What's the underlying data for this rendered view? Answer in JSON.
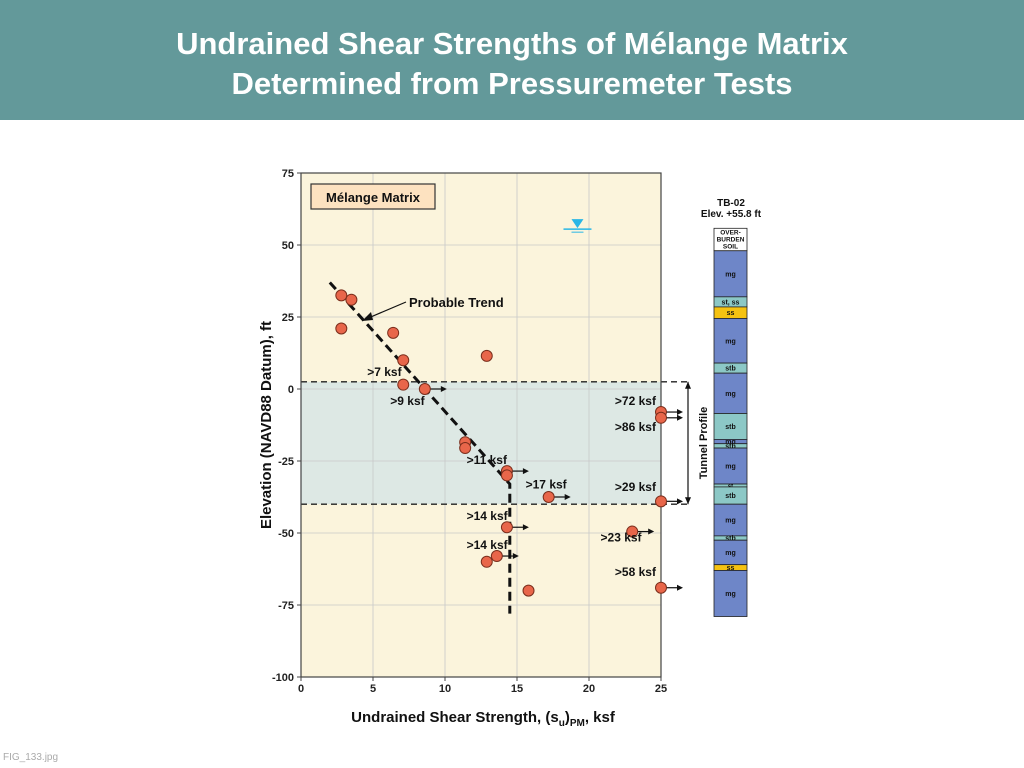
{
  "header": {
    "title_line1": "Undrained Shear Strengths of Mélange Matrix",
    "title_line2": "Determined from Pressuremeter Tests"
  },
  "footer": {
    "figure_id": "FIG_133.jpg"
  },
  "chart_data": {
    "type": "scatter",
    "legend_box": "Mélange Matrix",
    "xlabel_main": "Undrained Shear Strength, (s",
    "xlabel_sub1": "u",
    "xlabel_mid": ")",
    "xlabel_sub2": "PM",
    "xlabel_end": ", ksf",
    "ylabel": "Elevation (NAVD88 Datum), ft",
    "xlim": [
      0,
      25
    ],
    "ylim": [
      -100,
      75
    ],
    "x_ticks": [
      0,
      5,
      10,
      15,
      20,
      25
    ],
    "y_ticks": [
      75,
      50,
      25,
      0,
      -25,
      -50,
      -75,
      -100
    ],
    "grid": true,
    "colors": {
      "plot_bg": "#fbf4dc",
      "band": "#dde8e4",
      "point": "#e8664a",
      "legend_box": "#fde2c0",
      "water": "#29b6e6",
      "mg": "#6e86c8",
      "stb": "#8cc8c6",
      "ss": "#f5c211"
    },
    "points": [
      {
        "x": 2.8,
        "y": 32.5
      },
      {
        "x": 3.5,
        "y": 31
      },
      {
        "x": 2.8,
        "y": 21
      },
      {
        "x": 6.4,
        "y": 19.5
      },
      {
        "x": 7.1,
        "y": 10
      },
      {
        "x": 12.9,
        "y": 11.5
      },
      {
        "x": 7.1,
        "y": 1.5
      },
      {
        "x": 8.6,
        "y": 0
      },
      {
        "x": 11.4,
        "y": -18.5
      },
      {
        "x": 11.4,
        "y": -20.5
      },
      {
        "x": 14.3,
        "y": -28.5
      },
      {
        "x": 14.3,
        "y": -30
      },
      {
        "x": 17.2,
        "y": -37.5
      },
      {
        "x": 25,
        "y": -8
      },
      {
        "x": 25,
        "y": -10
      },
      {
        "x": 25,
        "y": -39
      },
      {
        "x": 14.3,
        "y": -48
      },
      {
        "x": 23,
        "y": -49.5
      },
      {
        "x": 13.6,
        "y": -58
      },
      {
        "x": 12.9,
        "y": -60
      },
      {
        "x": 15.8,
        "y": -70
      },
      {
        "x": 25,
        "y": -69
      }
    ],
    "arrow_points": [
      {
        "x": 8.6,
        "y": 0
      },
      {
        "x": 14.3,
        "y": -28.5
      },
      {
        "x": 17.2,
        "y": -37.5
      },
      {
        "x": 14.3,
        "y": -48
      },
      {
        "x": 13.6,
        "y": -58
      },
      {
        "x": 25,
        "y": -8
      },
      {
        "x": 25,
        "y": -10
      },
      {
        "x": 25,
        "y": -39
      },
      {
        "x": 23,
        "y": -49.5
      },
      {
        "x": 25,
        "y": -69
      }
    ],
    "trend_line": [
      {
        "x": 2,
        "y": 37
      },
      {
        "x": 14.5,
        "y": -33
      },
      {
        "x": 14.5,
        "y": -78
      }
    ],
    "trend_label": "Probable Trend",
    "tunnel_band": [
      2.5,
      -40
    ],
    "water_level": {
      "x": 19.2,
      "y": 55.5
    },
    "annotations": [
      {
        "text": ">7 ksf",
        "x": 4.6,
        "y": 4.5
      },
      {
        "text": ">9 ksf",
        "x": 6.2,
        "y": -5.5
      },
      {
        "text": ">11 ksf",
        "x": 11.5,
        "y": -26
      },
      {
        "text": ">17 ksf",
        "x": 15.6,
        "y": -34.5
      },
      {
        "text": ">14 ksf",
        "x": 11.5,
        "y": -45.5
      },
      {
        "text": ">14 ksf",
        "x": 11.5,
        "y": -55.5
      },
      {
        "text": ">72 ksf",
        "x": 21.8,
        "y": -5.5
      },
      {
        "text": ">86 ksf",
        "x": 21.8,
        "y": -14.5
      },
      {
        "text": ">29 ksf",
        "x": 21.8,
        "y": -35.5
      },
      {
        "text": ">23 ksf",
        "x": 20.8,
        "y": -53
      },
      {
        "text": ">58 ksf",
        "x": 21.8,
        "y": -65
      }
    ],
    "tunnel_profile_label": "Tunnel Profile",
    "boring": {
      "name": "TB-02",
      "elevation": "Elev. +55.8 ft",
      "layers": [
        {
          "label": "OVER-BURDEN SOIL",
          "top": 55.8,
          "bottom": 48,
          "type": "soil"
        },
        {
          "label": "mg",
          "top": 48,
          "bottom": 32,
          "type": "mg"
        },
        {
          "label": "st, ss",
          "top": 32,
          "bottom": 28.5,
          "type": "stb"
        },
        {
          "label": "ss",
          "top": 28.5,
          "bottom": 24.5,
          "type": "ss"
        },
        {
          "label": "mg",
          "top": 24.5,
          "bottom": 9,
          "type": "mg"
        },
        {
          "label": "stb",
          "top": 9,
          "bottom": 5.5,
          "type": "stb"
        },
        {
          "label": "mg",
          "top": 5.5,
          "bottom": -8.5,
          "type": "mg"
        },
        {
          "label": "stb",
          "top": -8.5,
          "bottom": -17.5,
          "type": "stb"
        },
        {
          "label": "mg",
          "top": -17.5,
          "bottom": -19,
          "type": "mg"
        },
        {
          "label": "stb",
          "top": -19,
          "bottom": -20.5,
          "type": "stb"
        },
        {
          "label": "mg",
          "top": -20.5,
          "bottom": -33,
          "type": "mg"
        },
        {
          "label": "st",
          "top": -33,
          "bottom": -34,
          "type": "stb"
        },
        {
          "label": "stb",
          "top": -34,
          "bottom": -40,
          "type": "stb"
        },
        {
          "label": "mg",
          "top": -40,
          "bottom": -51,
          "type": "mg"
        },
        {
          "label": "stb",
          "top": -51,
          "bottom": -52.5,
          "type": "stb"
        },
        {
          "label": "mg",
          "top": -52.5,
          "bottom": -61,
          "type": "mg"
        },
        {
          "label": "ss",
          "top": -61,
          "bottom": -63,
          "type": "ss"
        },
        {
          "label": "mg",
          "top": -63,
          "bottom": -79,
          "type": "mg"
        }
      ]
    }
  }
}
